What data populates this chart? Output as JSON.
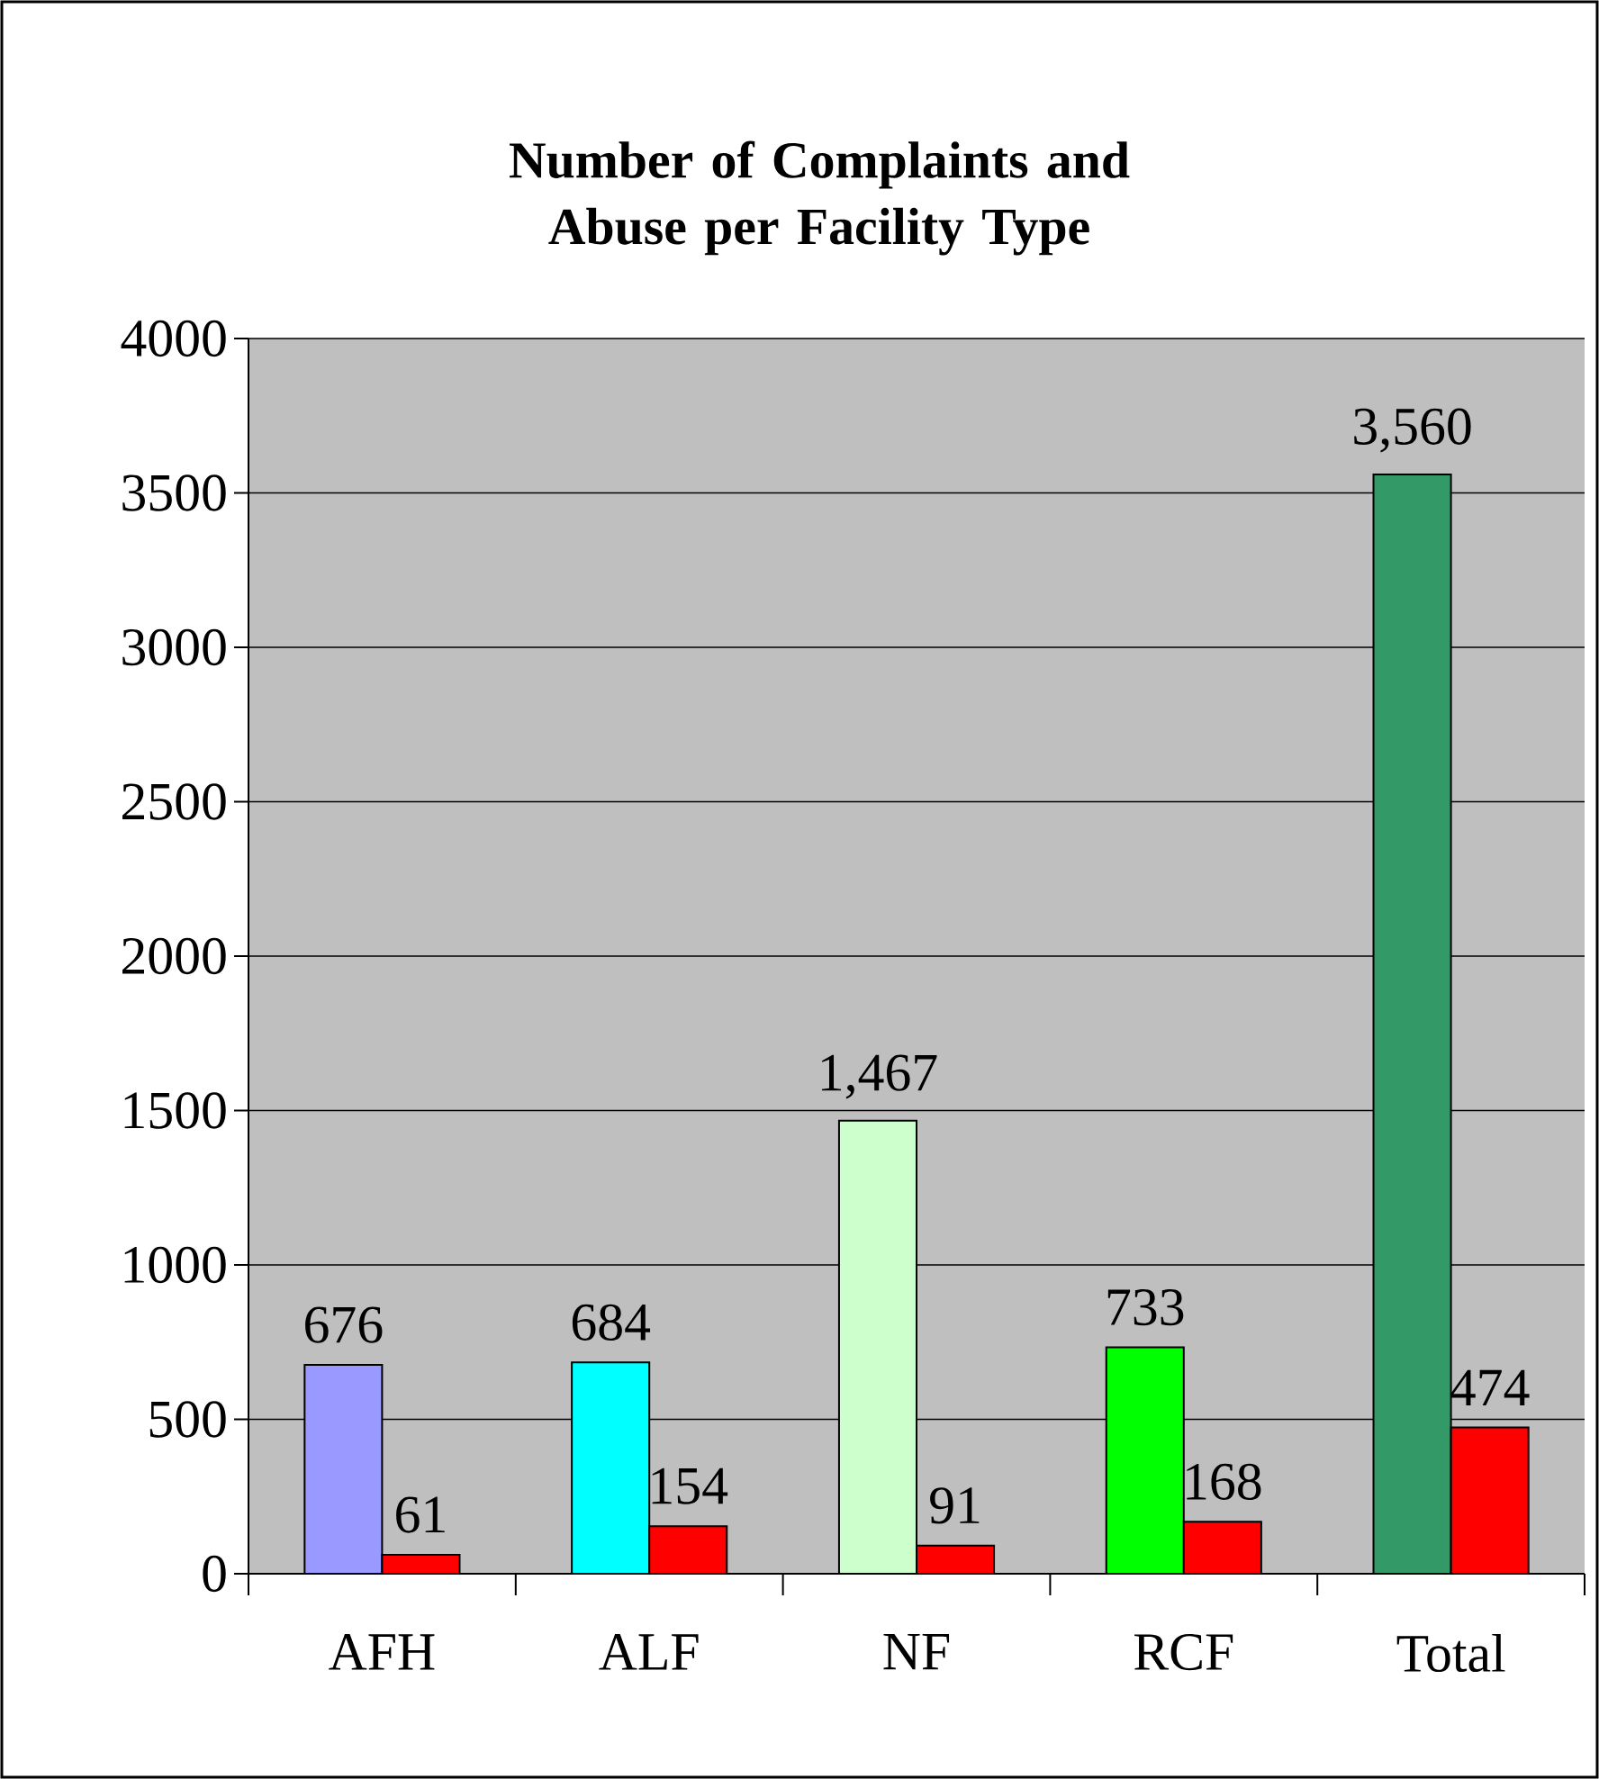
{
  "chart_data": {
    "type": "bar",
    "title": "Number of Complaints and Abuse per Facility Type",
    "categories": [
      "AFH",
      "ALF",
      "NF",
      "RCF",
      "Total"
    ],
    "series": [
      {
        "colors": [
          "#9999ff",
          "#00ffff",
          "#ccffcc",
          "#00ff00",
          "#339966"
        ],
        "values": [
          676,
          684,
          1467,
          733,
          3560
        ],
        "value_labels": [
          "676",
          "684",
          "1,467",
          "733",
          "3,560"
        ]
      },
      {
        "color": "#ff0000",
        "values": [
          61,
          154,
          91,
          168,
          474
        ],
        "value_labels": [
          "61",
          "154",
          "91",
          "168",
          "474"
        ]
      }
    ],
    "ylim": [
      0,
      4000
    ],
    "yticks": [
      0,
      500,
      1000,
      1500,
      2000,
      2500,
      3000,
      3500,
      4000
    ],
    "grid": "y"
  }
}
